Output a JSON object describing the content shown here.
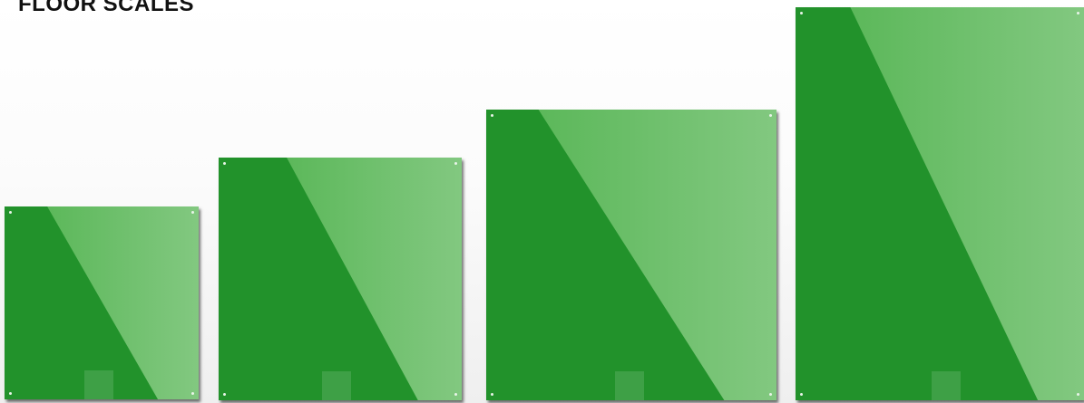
{
  "title": "FLOOR SCALES",
  "colors": {
    "panel_green": "#22922b",
    "panel_highlight": "#7cc47a",
    "background": "#f4f4f4"
  },
  "panels": [
    {
      "name": "floor-scale-small"
    },
    {
      "name": "floor-scale-medium"
    },
    {
      "name": "floor-scale-large"
    },
    {
      "name": "floor-scale-xlarge"
    }
  ]
}
